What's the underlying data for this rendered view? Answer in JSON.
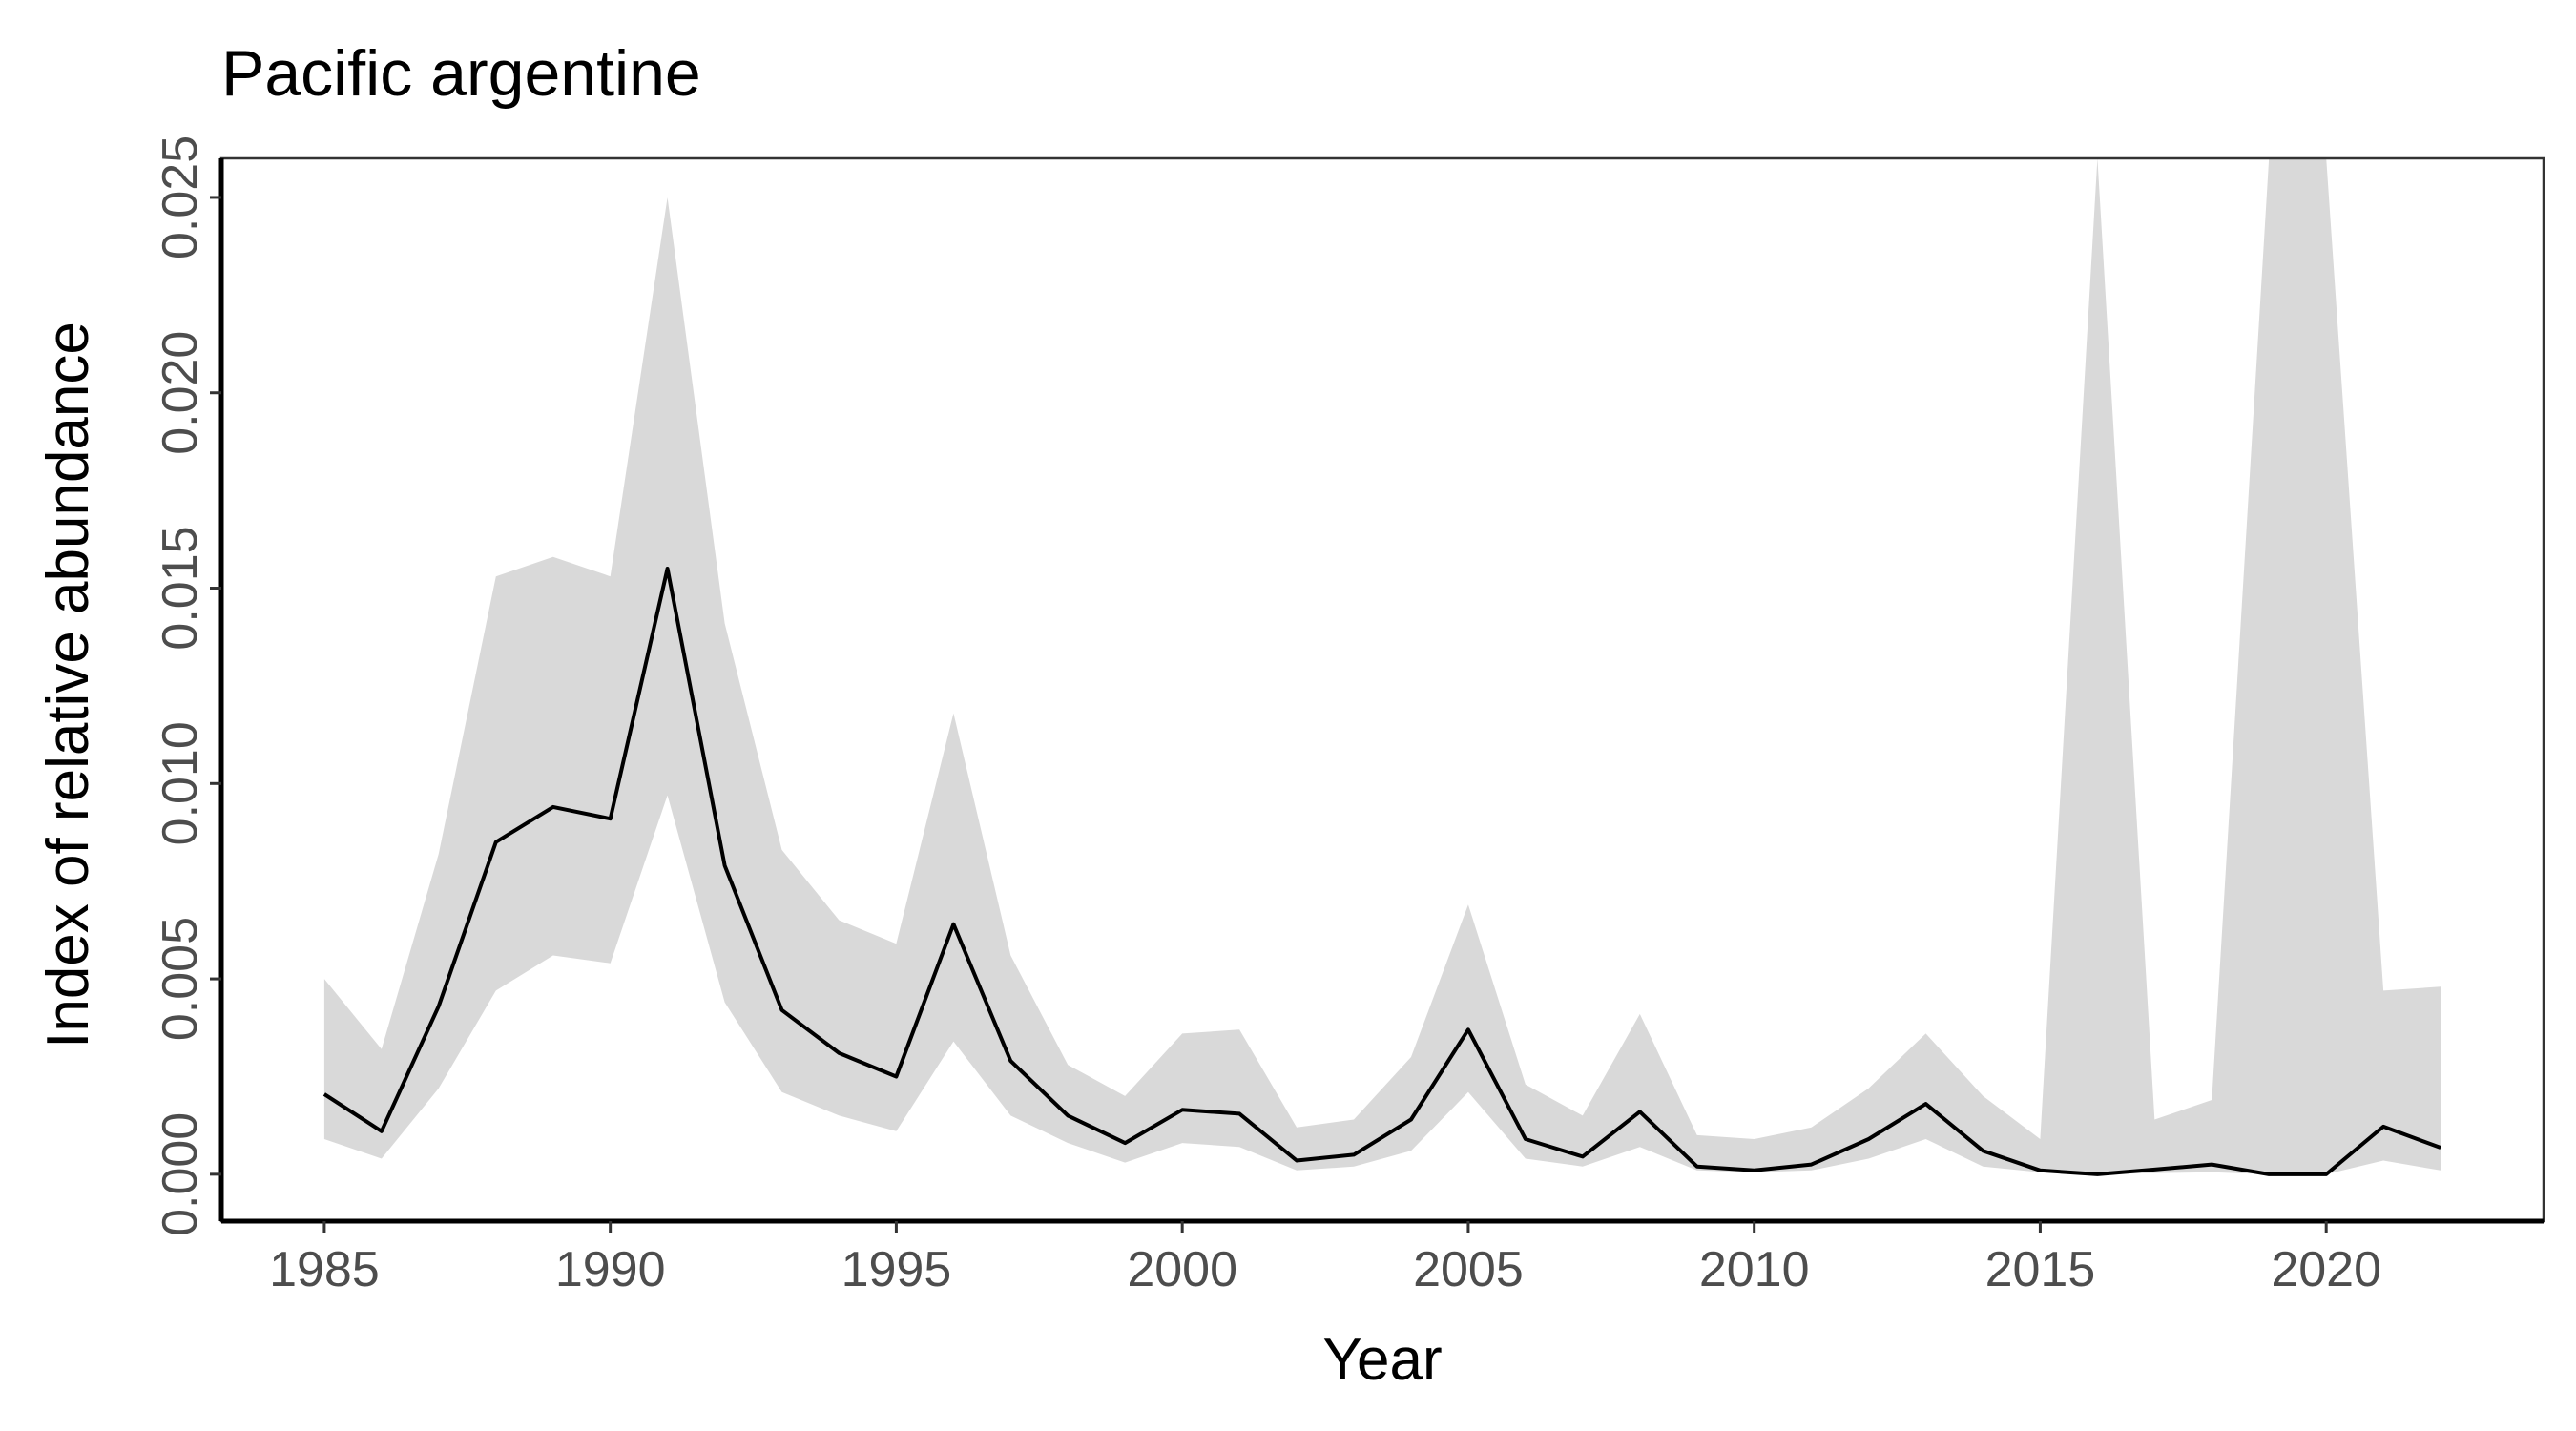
{
  "chart_data": {
    "type": "line",
    "title": "Pacific argentine",
    "xlabel": "Year",
    "ylabel": "Index of relative abundance",
    "xlim": [
      1983.2,
      2023.8
    ],
    "ylim": [
      -0.0012,
      0.026
    ],
    "xticks": [
      1985,
      1990,
      1995,
      2000,
      2005,
      2010,
      2015,
      2020
    ],
    "xtick_labels": [
      "1985",
      "1990",
      "1995",
      "2000",
      "2005",
      "2010",
      "2015",
      "2020"
    ],
    "yticks": [
      0,
      0.005,
      0.01,
      0.015,
      0.02,
      0.025
    ],
    "ytick_labels": [
      "0.000",
      "0.005",
      "0.010",
      "0.015",
      "0.020",
      "0.025"
    ],
    "grid": false,
    "series": [
      {
        "type": "line",
        "color": "#000000",
        "x": [
          1985,
          1986,
          1987,
          1988,
          1989,
          1990,
          1991,
          1992,
          1993,
          1994,
          1995,
          1996,
          1997,
          1998,
          1999,
          2000,
          2001,
          2002,
          2003,
          2004,
          2005,
          2006,
          2007,
          2008,
          2009,
          2010,
          2011,
          2012,
          2013,
          2014,
          2015,
          2016,
          2017,
          2018,
          2019,
          2020,
          2021,
          2022
        ],
        "values": [
          0.00205,
          0.0011,
          0.0043,
          0.0085,
          0.0094,
          0.0091,
          0.0155,
          0.0079,
          0.0042,
          0.0031,
          0.0025,
          0.0064,
          0.0029,
          0.0015,
          0.0008,
          0.00165,
          0.00155,
          0.00035,
          0.0005,
          0.0014,
          0.0037,
          0.0009,
          0.00045,
          0.0016,
          0.0002,
          0.0001,
          0.00025,
          0.0009,
          0.0018,
          0.0006,
          0.0001,
          0.0,
          0.00012,
          0.00025,
          0.0,
          0.0,
          0.00122,
          0.00068
        ]
      },
      {
        "type": "ribbon",
        "color": "#d9d9d9",
        "x": [
          1985,
          1986,
          1987,
          1988,
          1989,
          1990,
          1991,
          1992,
          1993,
          1994,
          1995,
          1996,
          1997,
          1998,
          1999,
          2000,
          2001,
          2002,
          2003,
          2004,
          2005,
          2006,
          2007,
          2008,
          2009,
          2010,
          2011,
          2012,
          2013,
          2014,
          2015,
          2016,
          2017,
          2018,
          2019,
          2020,
          2021,
          2022
        ],
        "lower": [
          0.0009,
          0.0004,
          0.0022,
          0.0047,
          0.0056,
          0.0054,
          0.0097,
          0.0044,
          0.0021,
          0.0015,
          0.0011,
          0.0034,
          0.0015,
          0.0008,
          0.0003,
          0.0008,
          0.0007,
          0.0001,
          0.0002,
          0.0006,
          0.0021,
          0.0004,
          0.0002,
          0.0007,
          0.0001,
          5e-05,
          0.0001,
          0.0004,
          0.0009,
          0.0002,
          5e-05,
          0.0,
          3e-05,
          5e-05,
          0.0,
          0.0,
          0.00035,
          0.0001
        ],
        "upper": [
          0.005,
          0.0032,
          0.0082,
          0.0153,
          0.0158,
          0.0153,
          0.025,
          0.0141,
          0.0083,
          0.0065,
          0.0059,
          0.0118,
          0.0056,
          0.0028,
          0.002,
          0.0036,
          0.0037,
          0.0012,
          0.0014,
          0.003,
          0.0069,
          0.0023,
          0.0015,
          0.0041,
          0.001,
          0.0009,
          0.0012,
          0.0022,
          0.0036,
          0.002,
          0.0009,
          0.026,
          0.0014,
          0.0019,
          0.026,
          0.026,
          0.0047,
          0.0048
        ]
      }
    ]
  }
}
